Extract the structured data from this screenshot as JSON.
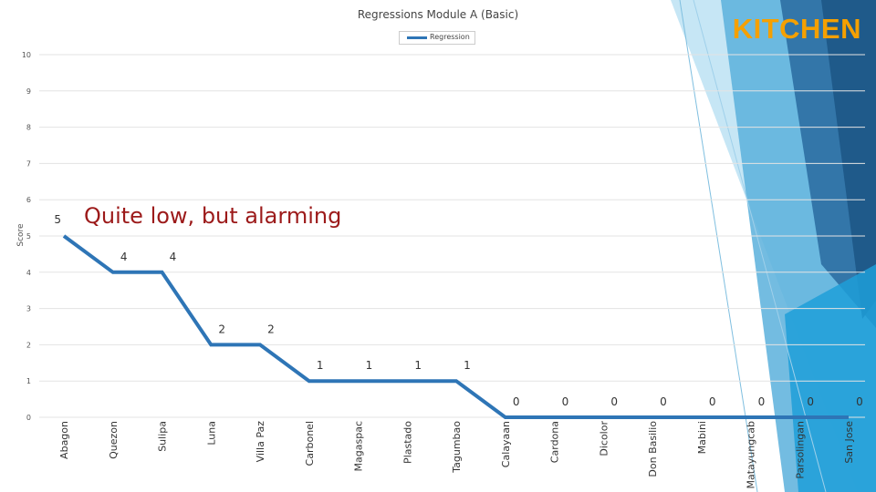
{
  "brand": {
    "text": "KITCHEN",
    "color": "#f5a000"
  },
  "chart_data": {
    "type": "line",
    "title": "Regressions Module A (Basic)",
    "ylabel": "Score",
    "xlabel": "",
    "ylim": [
      0,
      10
    ],
    "yticks": [
      0,
      1,
      2,
      3,
      4,
      5,
      6,
      7,
      8,
      9,
      10
    ],
    "grid": true,
    "legend_position": "top",
    "categories": [
      "Abagon",
      "Quezon",
      "Sulipa",
      "Luna",
      "Villa Paz",
      "Carbonel",
      "Magaspac",
      "Plastado",
      "Tagumbao",
      "Calayaan",
      "Cardona",
      "Dicolor",
      "Don Basilio",
      "Mabini",
      "Matayungcab",
      "Parsolingan",
      "San Jose"
    ],
    "series": [
      {
        "name": "Regression",
        "color": "#2e75b6",
        "values": [
          5,
          4,
          4,
          2,
          2,
          1,
          1,
          1,
          1,
          0,
          0,
          0,
          0,
          0,
          0,
          0,
          0
        ]
      }
    ],
    "annotation": "Quite low, but alarming",
    "annotation_color": "#9c1a1a"
  }
}
